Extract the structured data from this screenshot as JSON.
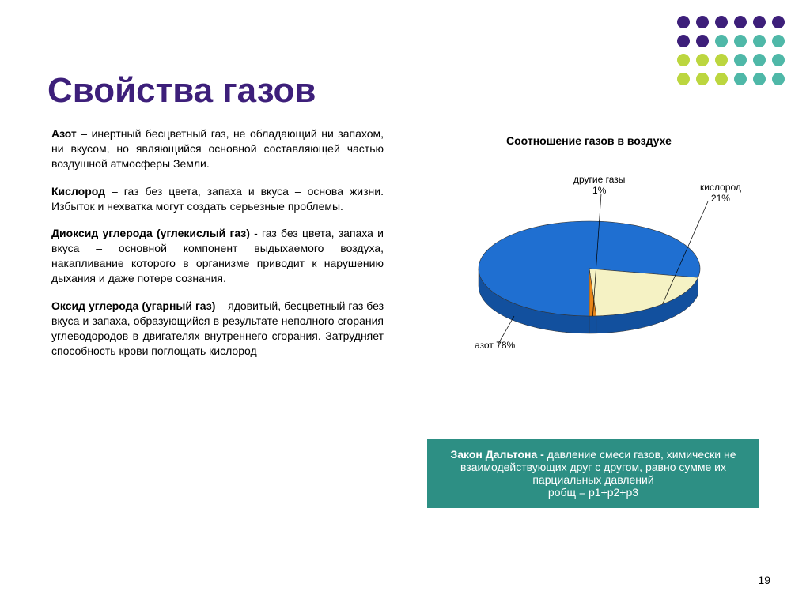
{
  "title": {
    "text": "Свойства газов",
    "color": "#3d1f7a",
    "fontsize": 44
  },
  "decoration": {
    "colors": [
      "#3d1f7a",
      "#3d1f7a",
      "#3d1f7a",
      "#3d1f7a",
      "#3d1f7a",
      "#3d1f7a",
      "#3d1f7a",
      "#3d1f7a",
      "#4fb8a8",
      "#4fb8a8",
      "#4fb8a8",
      "#4fb8a8",
      "#bcd63f",
      "#bcd63f",
      "#bcd63f",
      "#4fb8a8",
      "#4fb8a8",
      "#4fb8a8",
      "#bcd63f",
      "#bcd63f",
      "#bcd63f",
      "#4fb8a8",
      "#4fb8a8",
      "#4fb8a8"
    ]
  },
  "paragraphs": {
    "p1_b": "Азот",
    "p1": " – инертный бесцветный газ, не обладающий ни запахом, ни вкусом, но являющийся основной составляющей частью воздушной атмосферы Земли.",
    "p2_b": "Кислород",
    "p2": " – газ без цвета, запаха и вкуса – основа жизни. Избыток и нехватка могут создать серьезные проблемы.",
    "p3_b": "Диоксид углерода (углекислый газ)",
    "p3": " - газ без цвета, запаха и вкуса – основной компонент выдыхаемого воздуха, накапливание которого в организме приводит к нарушению дыхания и даже потере сознания.",
    "p4_b": "Оксид углерода (угарный газ)",
    "p4": " – ядовитый, бесцветный газ без вкуса и запаха, образующийся в результате неполного сгорания углеводородов в двигателях внутреннего сгорания. Затрудняет способность крови поглощать кислород"
  },
  "chart": {
    "title": "Соотношение газов в воздухе",
    "type": "pie",
    "slices": [
      {
        "label": "азот 78%",
        "value": 78,
        "color": "#1f6fd1"
      },
      {
        "label": "кислород\n21%",
        "value": 21,
        "color": "#f5f2c4"
      },
      {
        "label": "другие газы\n1%",
        "value": 1,
        "color": "#e8861a"
      }
    ],
    "side_color": "#12509e",
    "stroke": "#333333",
    "background": "#ffffff",
    "label_fontsize": 12,
    "tilt": "3d-ellipse"
  },
  "law_box": {
    "bg": "#2d8f84",
    "text_b": "Закон Дальтона - ",
    "text": "давление смеси газов, химически не взаимодействующих друг с другом, равно сумме их парциальных давлений",
    "formula": "pобщ = p1+p2+p3"
  },
  "page_number": "19"
}
